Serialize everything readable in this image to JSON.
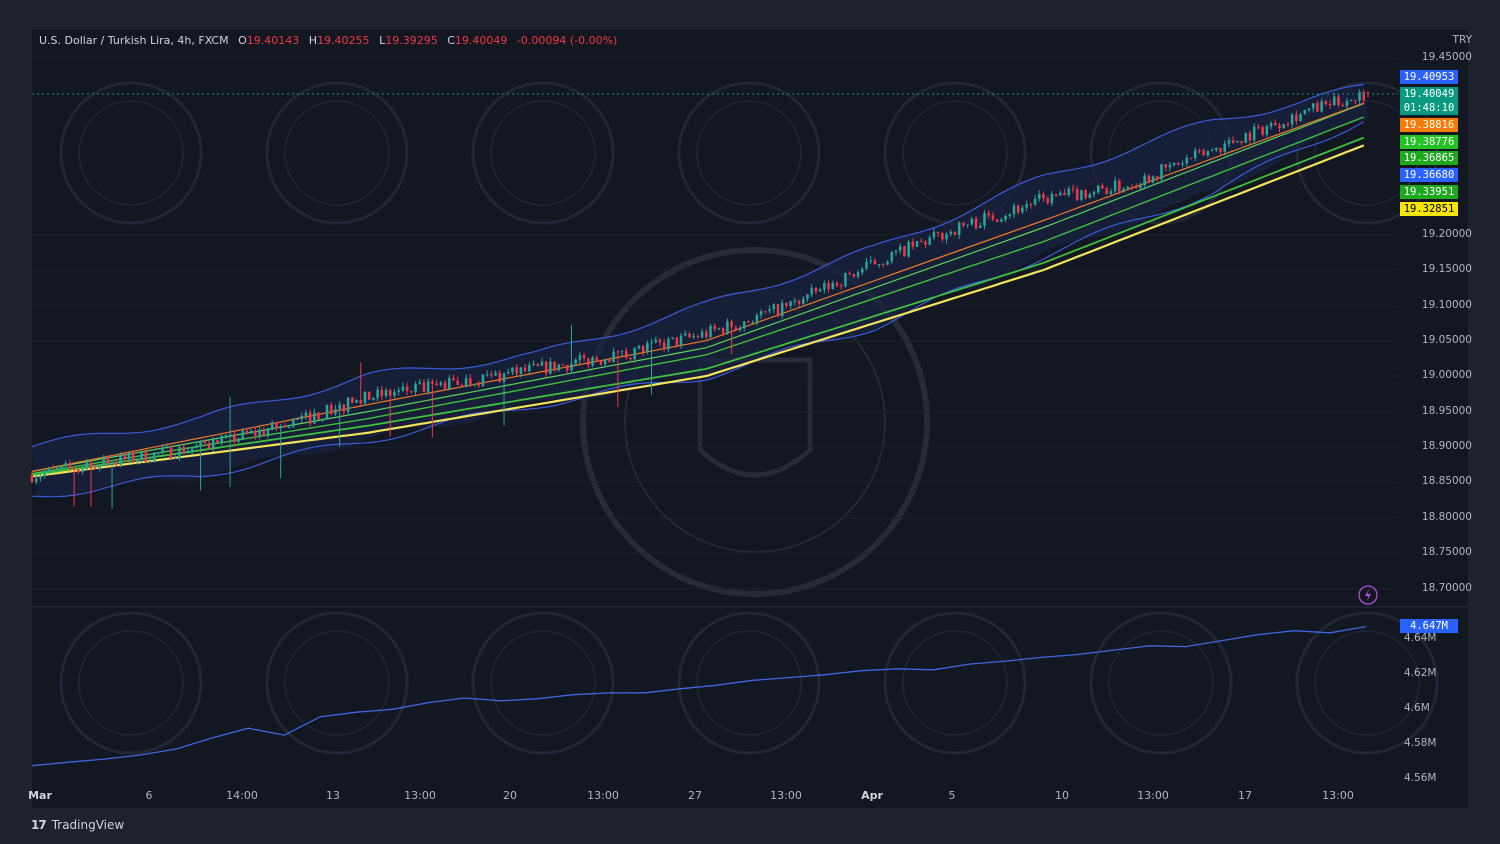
{
  "header": {
    "symbol": "U.S. Dollar / Turkish Lira, 4h, FXCM",
    "open_label": "O",
    "open": "19.40143",
    "high_label": "H",
    "high": "19.40255",
    "low_label": "L",
    "low": "19.39295",
    "close_label": "C",
    "close": "19.40049",
    "change": "-0.00094 (-0.00%)"
  },
  "currency": "TRY",
  "brand": "TradingView",
  "colors": {
    "background": "#131722",
    "up": "#26a69a",
    "down": "#f23645",
    "band": "#3a5bd9",
    "ema_green": "#3fbf3f",
    "ema_orange": "#e8782a",
    "ema_yellow": "#f2e35a"
  },
  "badges": [
    {
      "text": "19.40953",
      "bg": "#2962ff",
      "fg": "#ffffff"
    },
    {
      "text": "19.40049",
      "bg": "#089981",
      "fg": "#ffffff"
    },
    {
      "text": "01:48:10",
      "bg": "#089981",
      "fg": "#ffffff"
    },
    {
      "text": "19.38816",
      "bg": "#f57c00",
      "fg": "#ffffff"
    },
    {
      "text": "19.38776",
      "bg": "#22c322",
      "fg": "#ffffff"
    },
    {
      "text": "19.36865",
      "bg": "#1ea81e",
      "fg": "#ffffff"
    },
    {
      "text": "19.36680",
      "bg": "#2962ff",
      "fg": "#ffffff"
    },
    {
      "text": "19.33951",
      "bg": "#1ea81e",
      "fg": "#ffffff"
    },
    {
      "text": "19.32851",
      "bg": "#f5e500",
      "fg": "#000000"
    }
  ],
  "indicator_badge": {
    "text": "4.647M",
    "bg": "#2962ff"
  },
  "chart_data": [
    {
      "type": "candlestick",
      "x_ticks": [
        "Mar",
        "6",
        "14:00",
        "13",
        "13:00",
        "20",
        "13:00",
        "27",
        "13:00",
        "Apr",
        "5",
        "10",
        "13:00",
        "17",
        "13:00"
      ],
      "y_ticks": [
        "19.45000",
        "19.20000",
        "19.15000",
        "19.10000",
        "19.05000",
        "19.00000",
        "18.95000",
        "18.90000",
        "18.85000",
        "18.80000",
        "18.75000",
        "18.70000"
      ],
      "ylim": [
        18.68,
        19.455
      ],
      "series": [
        {
          "name": "price",
          "approx_path": [
            [
              0,
              18.86
            ],
            [
              20,
              18.88
            ],
            [
              40,
              18.9
            ],
            [
              60,
              18.93
            ],
            [
              80,
              18.97
            ],
            [
              100,
              18.99
            ],
            [
              120,
              19.01
            ],
            [
              140,
              19.03
            ],
            [
              160,
              19.06
            ],
            [
              180,
              19.1
            ],
            [
              200,
              19.16
            ],
            [
              220,
              19.21
            ],
            [
              240,
              19.25
            ],
            [
              260,
              19.27
            ],
            [
              280,
              19.32
            ],
            [
              300,
              19.37
            ],
            [
              317,
              19.40049
            ]
          ]
        },
        {
          "name": "upper band",
          "approx_path": [
            [
              0,
              18.9
            ],
            [
              40,
              18.94
            ],
            [
              80,
              19.0
            ],
            [
              120,
              19.03
            ],
            [
              160,
              19.1
            ],
            [
              200,
              19.18
            ],
            [
              240,
              19.28
            ],
            [
              280,
              19.36
            ],
            [
              317,
              19.40953
            ]
          ]
        },
        {
          "name": "lower band",
          "approx_path": [
            [
              0,
              18.83
            ],
            [
              40,
              18.86
            ],
            [
              80,
              18.91
            ],
            [
              120,
              18.96
            ],
            [
              160,
              19.0
            ],
            [
              200,
              19.07
            ],
            [
              240,
              19.17
            ],
            [
              280,
              19.26
            ],
            [
              317,
              19.3668
            ]
          ]
        },
        {
          "name": "ema fast",
          "approx_path": [
            [
              0,
              18.865
            ],
            [
              80,
              18.96
            ],
            [
              160,
              19.05
            ],
            [
              240,
              19.22
            ],
            [
              317,
              19.38816
            ]
          ]
        },
        {
          "name": "ema mid",
          "approx_path": [
            [
              0,
              18.865
            ],
            [
              80,
              18.95
            ],
            [
              160,
              19.04
            ],
            [
              240,
              19.21
            ],
            [
              317,
              19.38776
            ]
          ]
        },
        {
          "name": "ema mid2",
          "approx_path": [
            [
              0,
              18.862
            ],
            [
              80,
              18.94
            ],
            [
              160,
              19.03
            ],
            [
              240,
              19.19
            ],
            [
              317,
              19.36865
            ]
          ]
        },
        {
          "name": "ema slow",
          "approx_path": [
            [
              0,
              18.86
            ],
            [
              80,
              18.93
            ],
            [
              160,
              19.01
            ],
            [
              240,
              19.16
            ],
            [
              317,
              19.33951
            ]
          ]
        },
        {
          "name": "ema slowest",
          "approx_path": [
            [
              0,
              18.858
            ],
            [
              80,
              18.92
            ],
            [
              160,
              19.0
            ],
            [
              240,
              19.15
            ],
            [
              317,
              19.32851
            ]
          ]
        }
      ]
    },
    {
      "type": "line",
      "y_ticks": [
        "4.64M",
        "4.62M",
        "4.6M",
        "4.58M",
        "4.56M"
      ],
      "ylim": [
        4.555,
        4.655
      ],
      "series": [
        {
          "name": "indicator",
          "values": [
            4.568,
            4.569,
            4.572,
            4.575,
            4.577,
            4.583,
            4.59,
            4.586,
            4.595,
            4.598,
            4.601,
            4.604,
            4.6055,
            4.605,
            4.607,
            4.608,
            4.6085,
            4.61,
            4.6125,
            4.613,
            4.616,
            4.619,
            4.62,
            4.621,
            4.623,
            4.6235,
            4.6255,
            4.6265,
            4.63,
            4.632,
            4.633,
            4.6355,
            4.6365,
            4.6395,
            4.6415,
            4.6445,
            4.6445,
            4.647
          ]
        }
      ]
    }
  ]
}
